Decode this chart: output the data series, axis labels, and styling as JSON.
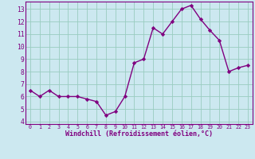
{
  "x": [
    0,
    1,
    2,
    3,
    4,
    5,
    6,
    7,
    8,
    9,
    10,
    11,
    12,
    13,
    14,
    15,
    16,
    17,
    18,
    19,
    20,
    21,
    22,
    23
  ],
  "y": [
    6.5,
    6.0,
    6.5,
    6.0,
    6.0,
    6.0,
    5.8,
    5.6,
    4.5,
    4.8,
    6.0,
    8.7,
    9.0,
    11.5,
    11.0,
    12.0,
    13.0,
    13.3,
    12.2,
    11.3,
    10.5,
    8.0,
    8.3,
    8.5
  ],
  "line_color": "#800080",
  "marker": "D",
  "marker_size": 2.2,
  "bg_color": "#cce8f0",
  "grid_color": "#99ccc0",
  "xlabel": "Windchill (Refroidissement éolien,°C)",
  "xlabel_color": "#800080",
  "tick_color": "#800080",
  "ylim": [
    3.8,
    13.6
  ],
  "xlim": [
    -0.5,
    23.5
  ],
  "yticks": [
    4,
    5,
    6,
    7,
    8,
    9,
    10,
    11,
    12,
    13
  ],
  "xticks": [
    0,
    1,
    2,
    3,
    4,
    5,
    6,
    7,
    8,
    9,
    10,
    11,
    12,
    13,
    14,
    15,
    16,
    17,
    18,
    19,
    20,
    21,
    22,
    23
  ],
  "linewidth": 1.0,
  "spine_color": "#800080"
}
